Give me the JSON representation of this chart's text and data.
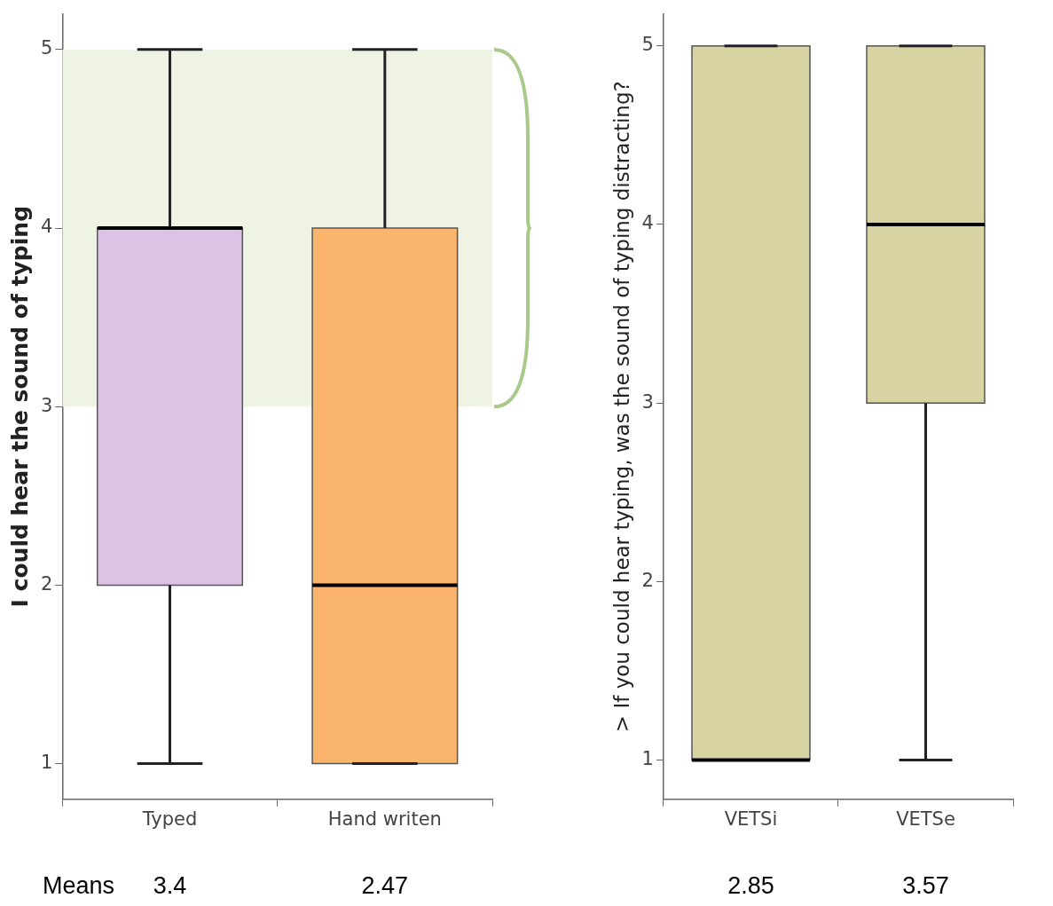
{
  "chart_data": [
    {
      "type": "box",
      "ylabel": "I could hear the sound of typing",
      "categories": [
        "Typed",
        "Hand writen"
      ],
      "boxes": [
        {
          "low": 1,
          "q1": 2,
          "median": 4,
          "q3": 4,
          "high": 5
        },
        {
          "low": 1,
          "q1": 1,
          "median": 2,
          "q3": 4,
          "high": 5
        }
      ],
      "colors": [
        "#dcc3e6",
        "#fbb46c"
      ],
      "ylim": [
        0.8,
        5.2
      ],
      "yticks": [
        1,
        2,
        3,
        4,
        5
      ],
      "bands": [
        {
          "axis": "y",
          "from": 3,
          "to": 5,
          "color": "#eef3e4"
        }
      ],
      "annotations": [
        "Means",
        "3.4",
        "2.47"
      ]
    },
    {
      "type": "box",
      "ylabel": "> If you could hear typing, was the sound of typing distracting?",
      "categories": [
        "VETSi",
        "VETSe"
      ],
      "boxes": [
        {
          "low": 1,
          "q1": 1,
          "median": 1,
          "q3": 5,
          "high": 5
        },
        {
          "low": 1,
          "q1": 3,
          "median": 4,
          "q3": 5,
          "high": 5
        }
      ],
      "colors": [
        "#d8d3a2",
        "#d8d3a2"
      ],
      "ylim": [
        0.78,
        5.18
      ],
      "yticks": [
        1,
        2,
        3,
        4,
        5
      ],
      "annotations": [
        "2.85",
        "3.57"
      ]
    }
  ]
}
